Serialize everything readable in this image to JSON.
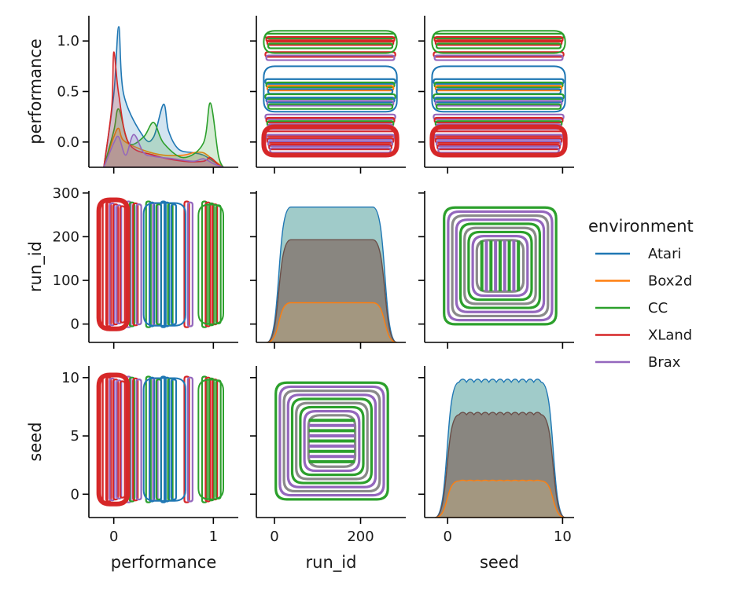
{
  "chart_data": {
    "type": "pairplot-kde",
    "variables": [
      "performance",
      "run_id",
      "seed"
    ],
    "hue": "environment",
    "legend": {
      "title": "environment",
      "placement": "right",
      "entries": [
        {
          "name": "Atari",
          "color": "#1f77b4"
        },
        {
          "name": "Box2d",
          "color": "#ff7f0e"
        },
        {
          "name": "CC",
          "color": "#2ca02c"
        },
        {
          "name": "XLand",
          "color": "#d62728"
        },
        {
          "name": "Brax",
          "color": "#9467bd"
        }
      ]
    },
    "axes": {
      "performance": {
        "label": "performance",
        "lim": [
          -0.25,
          1.25
        ],
        "ticks": [
          0,
          1
        ],
        "tick_labels": [
          "0",
          "1"
        ],
        "y_ticks": [
          0,
          0.5,
          1
        ],
        "y_tick_labels": [
          "0.0",
          "0.5",
          "1.0"
        ]
      },
      "run_id": {
        "label": "run_id",
        "lim": [
          -42,
          305
        ],
        "ticks": [
          0,
          200
        ],
        "tick_labels": [
          "0",
          "200"
        ],
        "y_ticks": [
          0,
          100,
          200,
          300
        ],
        "y_tick_labels": [
          "0",
          "100",
          "200",
          "300"
        ]
      },
      "seed": {
        "label": "seed",
        "lim": [
          -2,
          11
        ],
        "ticks": [
          0,
          10
        ],
        "tick_labels": [
          "0",
          "10"
        ],
        "y_ticks": [
          0,
          5,
          10
        ],
        "y_tick_labels": [
          "0",
          "5",
          "10"
        ]
      }
    },
    "diagonal": {
      "performance": [
        {
          "name": "Atari",
          "x": [
            -0.1,
            0.0,
            0.05,
            0.1,
            0.3,
            0.4,
            0.5,
            0.55,
            0.65,
            0.8,
            0.9,
            1.0,
            1.1
          ],
          "density": [
            0.0,
            0.6,
            1.16,
            0.6,
            0.25,
            0.25,
            0.52,
            0.3,
            0.15,
            0.12,
            0.1,
            0.05,
            0.0
          ]
        },
        {
          "name": "Box2d",
          "x": [
            -0.1,
            0.0,
            0.05,
            0.1,
            0.3,
            0.5,
            0.7,
            0.8,
            0.9,
            1.0,
            1.1
          ],
          "density": [
            0.0,
            0.25,
            0.32,
            0.22,
            0.14,
            0.1,
            0.1,
            0.12,
            0.12,
            0.06,
            0.0
          ]
        },
        {
          "name": "CC",
          "x": [
            -0.1,
            0.0,
            0.05,
            0.15,
            0.3,
            0.4,
            0.5,
            0.7,
            0.9,
            0.97,
            1.05,
            1.1
          ],
          "density": [
            0.0,
            0.3,
            0.48,
            0.2,
            0.25,
            0.37,
            0.2,
            0.08,
            0.2,
            0.53,
            0.1,
            0.0
          ]
        },
        {
          "name": "XLand",
          "x": [
            -0.1,
            -0.02,
            0.0,
            0.05,
            0.15,
            0.4,
            0.7,
            0.9,
            0.97,
            1.05,
            1.1
          ],
          "density": [
            0.0,
            0.5,
            0.95,
            0.6,
            0.2,
            0.1,
            0.05,
            0.05,
            0.08,
            0.02,
            0.0
          ]
        },
        {
          "name": "Brax",
          "x": [
            -0.1,
            0.0,
            0.05,
            0.12,
            0.2,
            0.3,
            0.4,
            0.6,
            0.8,
            0.9,
            1.0,
            1.1
          ],
          "density": [
            0.0,
            0.2,
            0.25,
            0.1,
            0.27,
            0.12,
            0.09,
            0.07,
            0.05,
            0.07,
            0.03,
            0.0
          ]
        }
      ],
      "run_id_plateau": [
        {
          "name": "Atari",
          "value": 290
        },
        {
          "name": "XLand",
          "value": 220
        },
        {
          "name": "Box2d",
          "value": 85
        }
      ],
      "seed_plateau": [
        {
          "name": "Atari",
          "value": 10.0
        },
        {
          "name": "XLand",
          "value": 7.6
        },
        {
          "name": "Box2d",
          "value": 2.7
        }
      ]
    }
  }
}
